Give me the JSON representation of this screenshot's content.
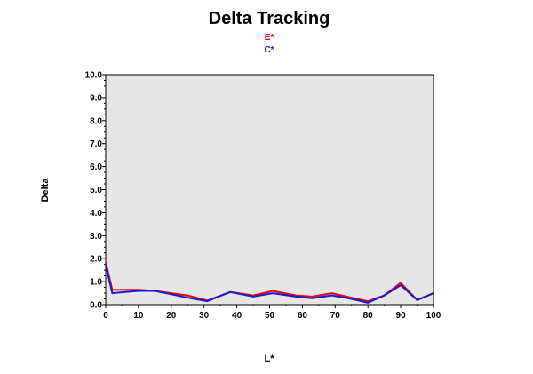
{
  "chart_data": {
    "type": "line",
    "title": "Delta Tracking",
    "xlabel": "L*",
    "ylabel": "Delta",
    "xlim": [
      0,
      100
    ],
    "ylim": [
      0,
      10
    ],
    "xticks": [
      0,
      10,
      20,
      30,
      40,
      50,
      60,
      70,
      80,
      90,
      100
    ],
    "yticks": [
      0,
      1,
      2,
      3,
      4,
      5,
      6,
      7,
      8,
      9,
      10
    ],
    "xtick_labels": [
      "0",
      "10",
      "20",
      "30",
      "40",
      "50",
      "60",
      "70",
      "80",
      "90",
      "100"
    ],
    "ytick_labels": [
      "0.0",
      "1.0",
      "2.0",
      "3.0",
      "4.0",
      "5.0",
      "6.0",
      "7.0",
      "8.0",
      "9.0",
      "10.0"
    ],
    "grid": false,
    "legend_position": "top-center",
    "plot_background": "#e6e6e6",
    "series": [
      {
        "name": "E*",
        "color": "#e8001c",
        "x": [
          0,
          2,
          10,
          15,
          20,
          25,
          31,
          38,
          45,
          51,
          58,
          63,
          69,
          75,
          80,
          85,
          90,
          95,
          100
        ],
        "y": [
          1.85,
          0.65,
          0.65,
          0.6,
          0.5,
          0.4,
          0.18,
          0.55,
          0.4,
          0.6,
          0.4,
          0.35,
          0.5,
          0.3,
          0.15,
          0.4,
          0.95,
          0.2,
          0.5
        ]
      },
      {
        "name": "C*",
        "color": "#1a1acc",
        "x": [
          0,
          2,
          10,
          15,
          20,
          25,
          31,
          38,
          45,
          51,
          58,
          63,
          69,
          75,
          80,
          85,
          90,
          95,
          100
        ],
        "y": [
          1.75,
          0.5,
          0.6,
          0.6,
          0.45,
          0.3,
          0.15,
          0.55,
          0.35,
          0.5,
          0.35,
          0.28,
          0.4,
          0.25,
          0.08,
          0.4,
          0.85,
          0.2,
          0.5
        ]
      }
    ]
  }
}
